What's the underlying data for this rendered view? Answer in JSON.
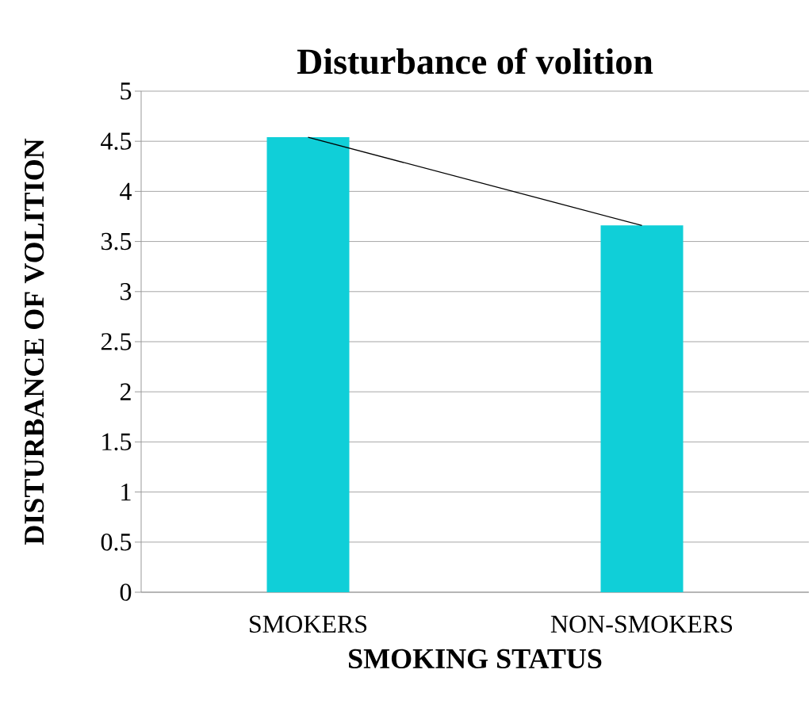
{
  "chart_data": {
    "type": "bar",
    "title": "Disturbance of volition",
    "xlabel": "SMOKING STATUS",
    "ylabel": "DISTURBANCE OF VOLITION",
    "categories": [
      "SMOKERS",
      "NON-SMOKERS"
    ],
    "series": [
      {
        "color": "#10cfd8",
        "values": [
          4.54,
          3.66
        ]
      },
      {
        "type": "line",
        "color": "#000000",
        "values": [
          4.54,
          3.66
        ]
      }
    ],
    "ylim": [
      0,
      5
    ],
    "yticks": [
      0,
      0.5,
      1,
      1.5,
      2,
      2.5,
      3,
      3.5,
      4,
      4.5,
      5
    ],
    "grid": "y"
  }
}
